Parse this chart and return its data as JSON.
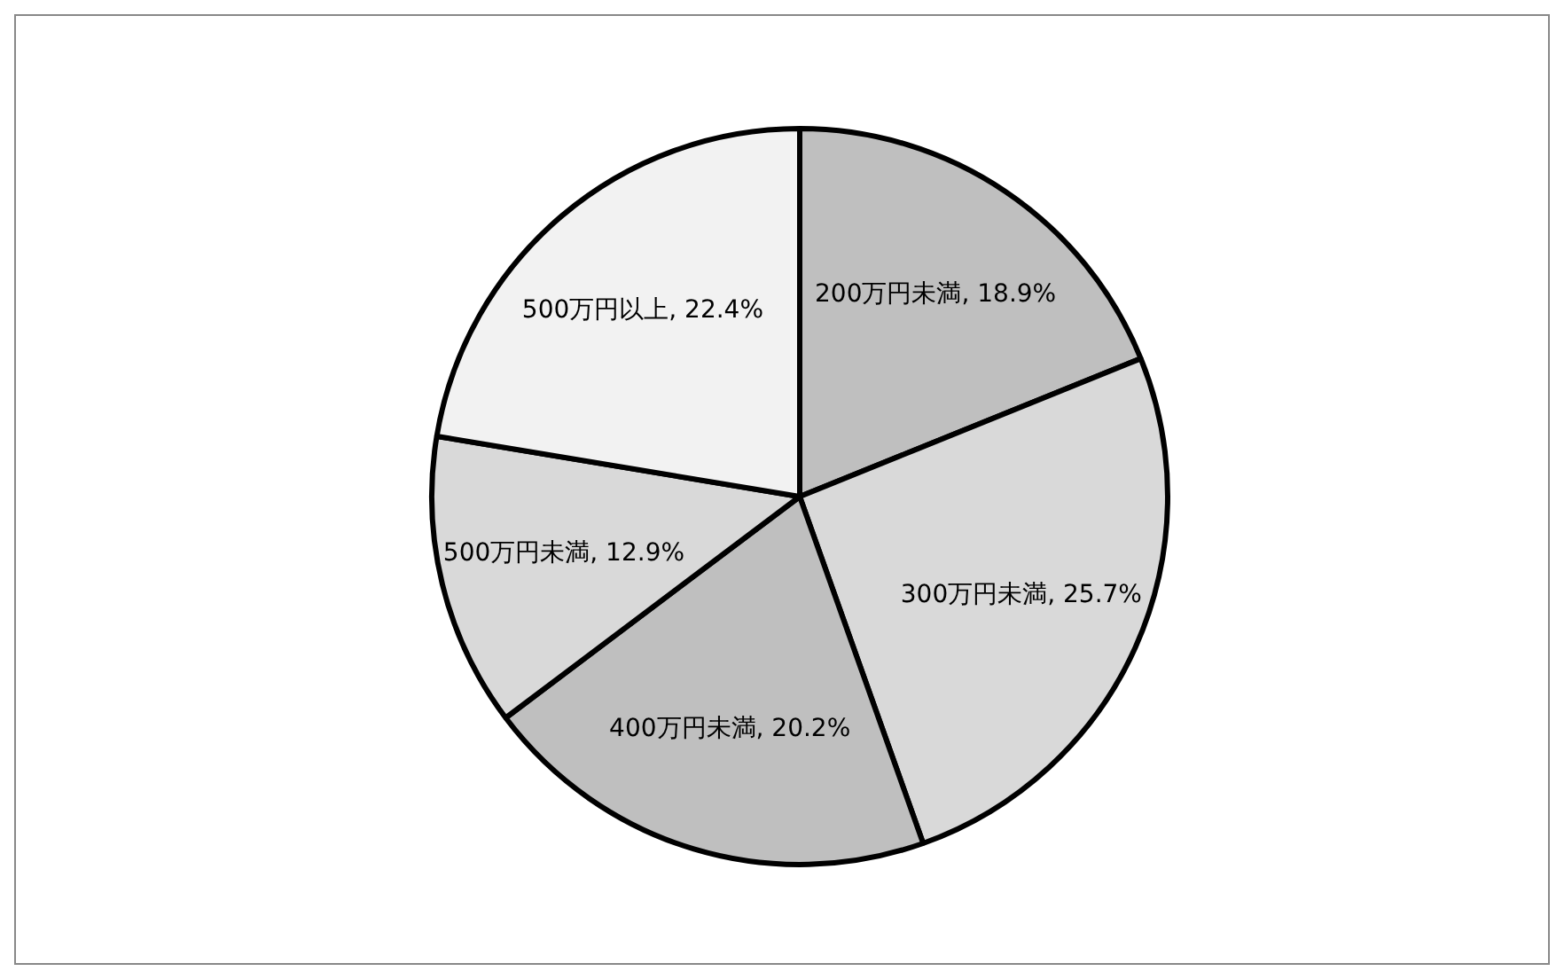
{
  "chart_data": {
    "type": "pie",
    "categories": [
      "200万円未満",
      "300万円未満",
      "400万円未満",
      "500万円未満",
      "500万円以上"
    ],
    "values": [
      18.9,
      25.7,
      20.2,
      12.9,
      22.4
    ],
    "colors": [
      "#bfbfbf",
      "#d9d9d9",
      "#bfbfbf",
      "#d9d9d9",
      "#f2f2f2"
    ],
    "value_labels": [
      "18.9%",
      "25.7%",
      "20.2%",
      "12.9%",
      "22.4%"
    ],
    "legend": false
  }
}
